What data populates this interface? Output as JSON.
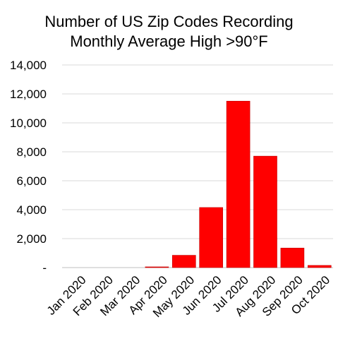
{
  "chart_data": {
    "type": "bar",
    "title_lines": [
      "Number of US Zip Codes Recording",
      "Monthly  Average High >90°F"
    ],
    "xlabel": "",
    "ylabel": "",
    "categories": [
      "Jan 2020",
      "Feb 2020",
      "Mar 2020",
      "Apr 2020",
      "May 2020",
      "Jun 2020",
      "Jul 2020",
      "Aug 2020",
      "Sep 2020",
      "Oct 2020"
    ],
    "values": [
      0,
      0,
      0,
      50,
      850,
      4150,
      11500,
      7700,
      1350,
      150
    ],
    "ylim": [
      0,
      14000
    ],
    "yticks": [
      0,
      2000,
      4000,
      6000,
      8000,
      10000,
      12000,
      14000
    ],
    "ytick_labels": [
      "-",
      "2,000",
      "4,000",
      "6,000",
      "8,000",
      "10,000",
      "12,000",
      "14,000"
    ],
    "grid": true,
    "legend": "none",
    "colors": {
      "bar": "#ff0000",
      "bar_stroke": "#c00000",
      "grid": "#d9d9d9"
    }
  }
}
